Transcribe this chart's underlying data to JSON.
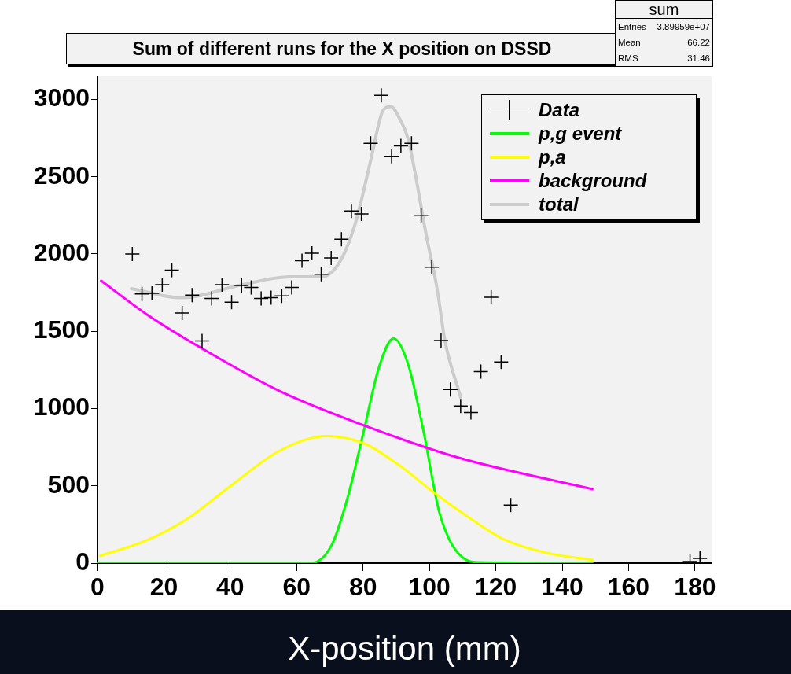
{
  "chart_data": {
    "type": "line",
    "title": "Sum of different runs for the X position on DSSD",
    "xlabel": "X-position (mm)",
    "xlim": [
      0,
      185
    ],
    "xticks": [
      0,
      20,
      40,
      60,
      80,
      100,
      120,
      140,
      160,
      180
    ],
    "ylim": [
      0,
      3150
    ],
    "yticks": [
      0,
      500,
      1000,
      1500,
      2000,
      2500,
      3000
    ],
    "grid": false,
    "legend": "top right",
    "annotations": [
      "sum",
      "Entries",
      "3.89959e+07",
      "Mean",
      "66.22",
      "RMS",
      "31.46"
    ],
    "series": [
      {
        "name": "Data",
        "type": "scatter",
        "marker": "cross",
        "color": "#000000",
        "x": [
          10.5,
          13.4,
          16.4,
          19.5,
          22.4,
          25.5,
          28.5,
          31.5,
          34.4,
          37.5,
          40.4,
          43.4,
          46.3,
          49.3,
          52.3,
          55.5,
          58.5,
          61.6,
          64.6,
          67.4,
          70.4,
          73.5,
          76.5,
          79.5,
          82.3,
          85.5,
          88.6,
          91.4,
          94.6,
          97.5,
          100.7,
          103.5,
          106.3,
          109.4,
          112.5,
          115.5,
          118.6,
          121.6,
          124.5,
          178.5,
          181.5
        ],
        "values": [
          2000,
          1742,
          1745,
          1801,
          1895,
          1618,
          1734,
          1437,
          1712,
          1801,
          1688,
          1796,
          1784,
          1712,
          1717,
          1729,
          1784,
          1957,
          2005,
          1869,
          1974,
          2095,
          2279,
          2259,
          2716,
          3026,
          2632,
          2700,
          2716,
          2251,
          1915,
          1440,
          1124,
          1017,
          975,
          1239,
          1720,
          1301,
          375,
          10,
          30
        ]
      },
      {
        "name": "p,g event",
        "marker": "none",
        "color": "#00ff00",
        "x": [
          0,
          30,
          64.2,
          70.5,
          75.3,
          80.1,
          84.8,
          89.2,
          93.6,
          98.3,
          103.1,
          111,
          115,
          149.1
        ],
        "values": [
          0,
          0,
          0,
          115,
          420,
          844,
          1267,
          1454,
          1285,
          844,
          319,
          22,
          5,
          0
        ]
      },
      {
        "name": "p,a",
        "marker": "none",
        "color": "#ffff00",
        "x": [
          0.7,
          15,
          26.9,
          40.4,
          54.7,
          69,
          80.1,
          90.4,
          101.5,
          112.6,
          122.9,
          135.6,
          149.1
        ],
        "values": [
          47,
          149,
          285,
          505,
          725,
          822,
          776,
          641,
          454,
          285,
          149,
          65,
          22
        ]
      },
      {
        "name": "background",
        "marker": "none",
        "color": "#ff00ff",
        "x": [
          1.1,
          15,
          31.7,
          54.7,
          80.9,
          108.6,
          149.1
        ],
        "values": [
          1827,
          1607,
          1386,
          1115,
          886,
          683,
          479
        ]
      },
      {
        "name": "total",
        "marker": "none",
        "color": "#cccccc",
        "x": [
          10.2,
          25.3,
          43.6,
          57.9,
          67.4,
          72.9,
          77.7,
          82.5,
          86,
          88.4,
          91,
          93.6,
          99.1,
          102.3,
          104.7,
          109.4
        ],
        "values": [
          1776,
          1717,
          1801,
          1852,
          1852,
          1946,
          2200,
          2623,
          2928,
          2954,
          2877,
          2742,
          2115,
          1776,
          1437,
          1073
        ]
      }
    ]
  }
}
